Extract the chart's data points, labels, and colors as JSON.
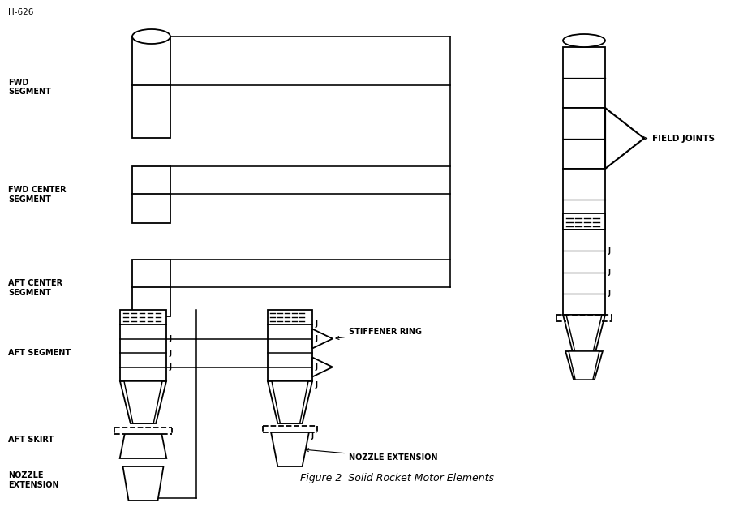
{
  "title": "Figure 2  Solid Rocket Motor Elements",
  "header": "H-626",
  "bg_color": "#ffffff",
  "line_color": "black",
  "lw": 1.3,
  "labels": {
    "fwd_segment": "FWD\nSEGMENT",
    "fwd_center": "FWD CENTER\nSEGMENT",
    "aft_center": "AFT CENTER\nSEGMENT",
    "aft_segment": "AFT SEGMENT",
    "aft_skirt": "AFT SKIRT",
    "nozzle_ext": "NOZZLE\nEXTENSION",
    "field_joints": "FIELD JOINTS",
    "stiffener_ring": "STIFFENER RING",
    "nozzle_extension2": "NOZZLE EXTENSION"
  },
  "figsize": [
    9.11,
    6.25
  ],
  "dpi": 100
}
